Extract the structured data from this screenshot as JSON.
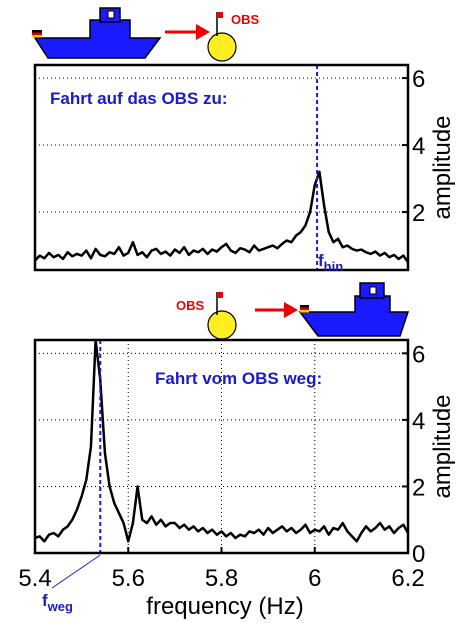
{
  "illustrations": {
    "top_obs_label": "OBS",
    "bottom_obs_label": "OBS"
  },
  "chart_data": [
    {
      "type": "line",
      "ylabel": "amplitude",
      "annotation": "Fahrt auf das OBS zu:",
      "marker_x": 6.005,
      "marker_label": "f",
      "marker_sub": "hin",
      "xlim": [
        5.4,
        6.2
      ],
      "ylim": [
        0.27,
        6.39
      ],
      "yticks": [
        2,
        4,
        6
      ],
      "grid": true,
      "color": "#000000",
      "x": [
        5.4,
        5.41,
        5.42,
        5.43,
        5.44,
        5.45,
        5.46,
        5.47,
        5.48,
        5.49,
        5.5,
        5.51,
        5.52,
        5.53,
        5.54,
        5.55,
        5.56,
        5.57,
        5.58,
        5.59,
        5.6,
        5.61,
        5.62,
        5.63,
        5.64,
        5.65,
        5.66,
        5.67,
        5.68,
        5.69,
        5.7,
        5.71,
        5.72,
        5.73,
        5.74,
        5.75,
        5.76,
        5.77,
        5.78,
        5.79,
        5.8,
        5.81,
        5.82,
        5.83,
        5.84,
        5.85,
        5.86,
        5.87,
        5.88,
        5.89,
        5.9,
        5.91,
        5.92,
        5.93,
        5.94,
        5.95,
        5.96,
        5.97,
        5.98,
        5.99,
        6.0,
        6.01,
        6.02,
        6.03,
        6.04,
        6.05,
        6.06,
        6.07,
        6.08,
        6.09,
        6.1,
        6.11,
        6.12,
        6.13,
        6.14,
        6.15,
        6.16,
        6.17,
        6.18,
        6.19,
        6.2
      ],
      "values": [
        0.55,
        0.7,
        0.62,
        0.78,
        0.65,
        0.72,
        0.6,
        0.8,
        0.68,
        0.75,
        0.7,
        0.85,
        0.62,
        0.9,
        0.72,
        0.68,
        0.8,
        0.75,
        0.95,
        0.7,
        0.78,
        1.1,
        0.72,
        0.8,
        0.65,
        0.85,
        0.9,
        0.75,
        0.82,
        0.7,
        0.88,
        0.78,
        0.95,
        0.72,
        0.85,
        0.8,
        0.9,
        0.75,
        0.88,
        0.82,
        0.95,
        1.05,
        0.85,
        0.78,
        0.92,
        0.88,
        0.8,
        1.0,
        0.85,
        0.9,
        0.95,
        1.0,
        0.92,
        1.05,
        1.15,
        1.1,
        1.3,
        1.4,
        1.6,
        2.0,
        2.8,
        3.2,
        2.2,
        1.4,
        1.1,
        1.2,
        0.95,
        1.0,
        0.9,
        0.85,
        0.88,
        0.8,
        0.75,
        0.82,
        0.7,
        0.78,
        0.65,
        0.72,
        0.6,
        0.7,
        0.5
      ]
    },
    {
      "type": "line",
      "ylabel": "amplitude",
      "xlabel": "frequency (Hz)",
      "annotation": "Fahrt vom OBS weg:",
      "marker_x": 5.54,
      "marker_label": "f",
      "marker_sub": "weg",
      "xlim": [
        5.4,
        6.2
      ],
      "ylim": [
        0,
        6.4
      ],
      "xticks": [
        5.4,
        5.6,
        5.8,
        6,
        6.2
      ],
      "yticks": [
        0,
        2,
        4,
        6
      ],
      "grid": true,
      "color": "#000000",
      "x": [
        5.4,
        5.41,
        5.42,
        5.43,
        5.44,
        5.45,
        5.46,
        5.47,
        5.48,
        5.49,
        5.5,
        5.51,
        5.52,
        5.53,
        5.54,
        5.55,
        5.56,
        5.57,
        5.58,
        5.59,
        5.6,
        5.61,
        5.62,
        5.63,
        5.64,
        5.65,
        5.66,
        5.67,
        5.68,
        5.69,
        5.7,
        5.71,
        5.72,
        5.73,
        5.74,
        5.75,
        5.76,
        5.77,
        5.78,
        5.79,
        5.8,
        5.81,
        5.82,
        5.83,
        5.84,
        5.85,
        5.86,
        5.87,
        5.88,
        5.89,
        5.9,
        5.91,
        5.92,
        5.93,
        5.94,
        5.95,
        5.96,
        5.97,
        5.98,
        5.99,
        6.0,
        6.01,
        6.02,
        6.03,
        6.04,
        6.05,
        6.06,
        6.07,
        6.08,
        6.09,
        6.1,
        6.11,
        6.12,
        6.13,
        6.14,
        6.15,
        6.16,
        6.17,
        6.18,
        6.19,
        6.2
      ],
      "values": [
        0.45,
        0.5,
        0.35,
        0.55,
        0.6,
        0.5,
        0.7,
        0.8,
        1.0,
        1.3,
        1.7,
        2.2,
        3.2,
        6.4,
        5.2,
        3.0,
        2.0,
        1.5,
        1.2,
        0.9,
        0.35,
        0.9,
        2.0,
        1.0,
        0.9,
        1.1,
        0.85,
        1.0,
        0.8,
        0.9,
        0.9,
        0.75,
        0.85,
        0.7,
        0.8,
        0.65,
        0.75,
        0.6,
        0.7,
        0.55,
        0.65,
        0.5,
        0.6,
        0.45,
        0.55,
        0.5,
        0.65,
        0.6,
        0.7,
        0.55,
        0.75,
        0.6,
        0.7,
        0.8,
        0.65,
        0.75,
        0.6,
        0.7,
        0.85,
        0.6,
        0.7,
        0.65,
        0.8,
        0.55,
        0.75,
        0.7,
        0.9,
        0.65,
        0.5,
        0.35,
        0.6,
        0.8,
        0.65,
        0.75,
        0.9,
        0.7,
        0.8,
        0.6,
        0.75,
        0.85,
        0.6
      ]
    }
  ]
}
